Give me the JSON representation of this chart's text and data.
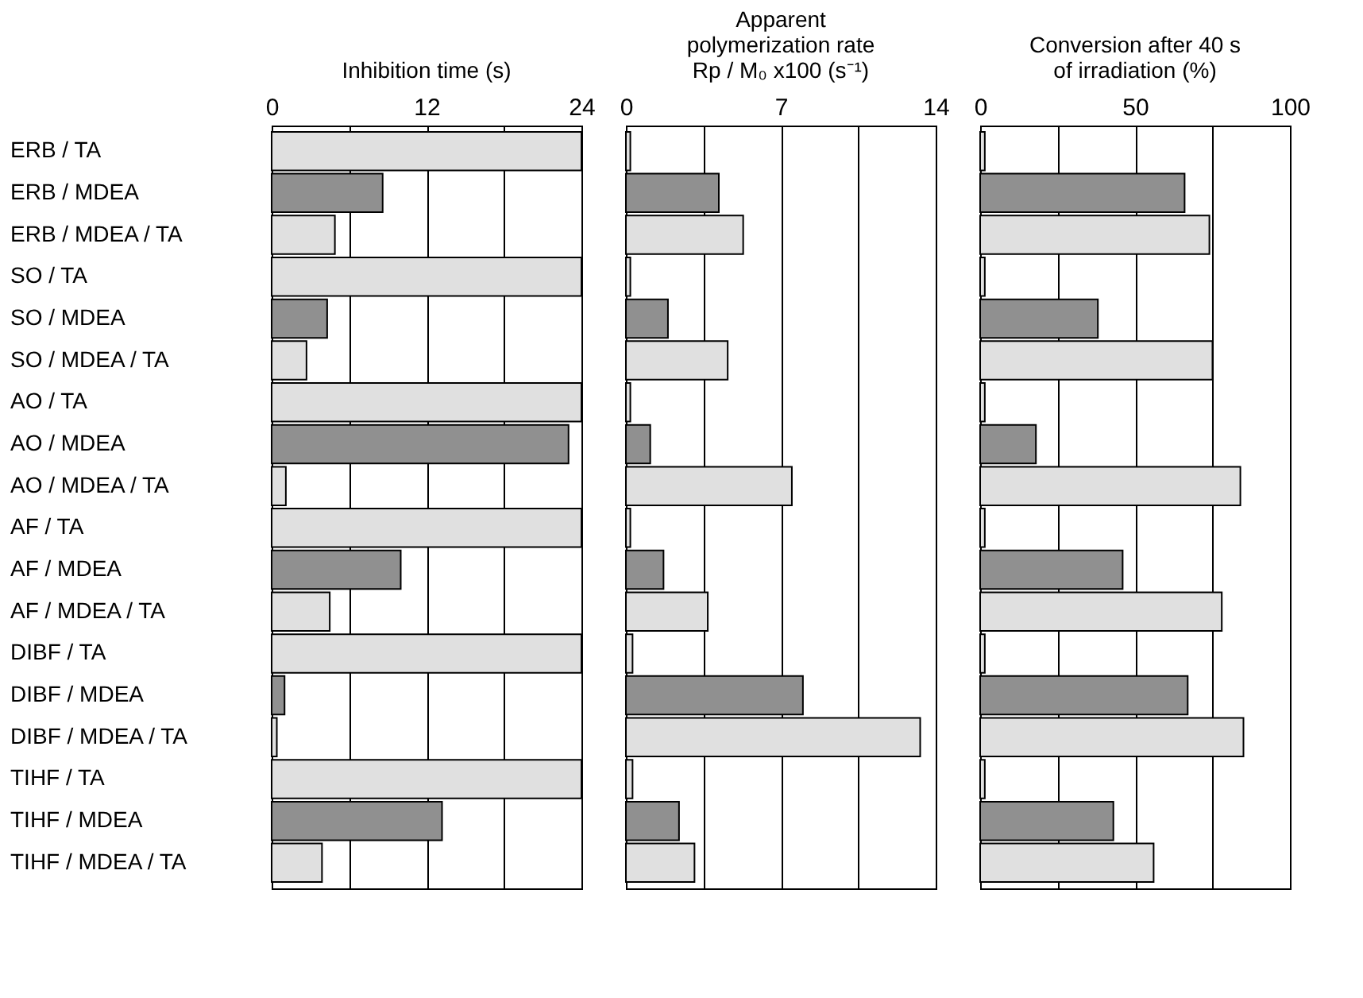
{
  "chart_data": [
    {
      "type": "bar",
      "orientation": "horizontal",
      "title": "Inhibition time (s)",
      "categories": [
        "ERB / TA",
        "ERB / MDEA",
        "ERB / MDEA / TA",
        "SO / TA",
        "SO / MDEA",
        "SO / MDEA / TA",
        "AO / TA",
        "AO / MDEA",
        "AO / MDEA / TA",
        "AF / TA",
        "AF / MDEA",
        "AF / MDEA / TA",
        "DIBF / TA",
        "DIBF / MDEA",
        "DIBF / MDEA / TA",
        "TIHF / TA",
        "TIHF / MDEA",
        "TIHF / MDEA / TA"
      ],
      "values": [
        24,
        8.6,
        4.9,
        24,
        4.3,
        2.7,
        24,
        23.0,
        1.1,
        24,
        10.0,
        4.5,
        24,
        1.0,
        0.4,
        24,
        13.2,
        3.9
      ],
      "colors": [
        "#e0e0e0",
        "#909090",
        "#e0e0e0",
        "#e0e0e0",
        "#909090",
        "#e0e0e0",
        "#e0e0e0",
        "#909090",
        "#e0e0e0",
        "#e0e0e0",
        "#909090",
        "#e0e0e0",
        "#e0e0e0",
        "#909090",
        "#e0e0e0",
        "#e0e0e0",
        "#909090",
        "#e0e0e0"
      ],
      "xlim": [
        0,
        24
      ],
      "xticks": [
        0,
        {
          "value": 6,
          "label": null
        },
        12,
        {
          "value": 18,
          "label": null
        },
        24
      ],
      "grid": "x"
    },
    {
      "type": "bar",
      "orientation": "horizontal",
      "title": "Apparent\npolymerization rate\nRp / M₀ x100 (s⁻¹)",
      "categories": [
        "ERB / TA",
        "ERB / MDEA",
        "ERB / MDEA / TA",
        "SO / TA",
        "SO / MDEA",
        "SO / MDEA / TA",
        "AO / TA",
        "AO / MDEA",
        "AO / MDEA / TA",
        "AF / TA",
        "AF / MDEA",
        "AF / MDEA / TA",
        "DIBF / TA",
        "DIBF / MDEA",
        "DIBF / MDEA / TA",
        "TIHF / TA",
        "TIHF / MDEA",
        "TIHF / MDEA / TA"
      ],
      "values": [
        0.2,
        4.2,
        5.3,
        0.2,
        1.9,
        4.6,
        0.2,
        1.1,
        7.5,
        0.2,
        1.7,
        3.7,
        0.3,
        8.0,
        13.3,
        0.3,
        2.4,
        3.1
      ],
      "colors": [
        "#e0e0e0",
        "#909090",
        "#e0e0e0",
        "#e0e0e0",
        "#909090",
        "#e0e0e0",
        "#e0e0e0",
        "#909090",
        "#e0e0e0",
        "#e0e0e0",
        "#909090",
        "#e0e0e0",
        "#e0e0e0",
        "#909090",
        "#e0e0e0",
        "#e0e0e0",
        "#909090",
        "#e0e0e0"
      ],
      "xlim": [
        0,
        14
      ],
      "xticks": [
        0,
        {
          "value": 3.5,
          "label": null
        },
        7,
        {
          "value": 10.5,
          "label": null
        },
        14
      ],
      "grid": "x",
      "tick_labels": "x"
    },
    {
      "type": "bar",
      "orientation": "horizontal",
      "title": "Conversion after 40 s\nof irradiation (%)",
      "categories": [
        "ERB / TA",
        "ERB / MDEA",
        "ERB / MDEA / TA",
        "SO / TA",
        "SO / MDEA",
        "SO / MDEA / TA",
        "AO / TA",
        "AO / MDEA",
        "AO / MDEA / TA",
        "AF / TA",
        "AF / MDEA",
        "AF / MDEA / TA",
        "DIBF / TA",
        "DIBF / MDEA",
        "DIBF / MDEA / TA",
        "TIHF / TA",
        "TIHF / MDEA",
        "TIHF / MDEA / TA"
      ],
      "values": [
        1.5,
        66,
        74,
        1.5,
        38,
        75,
        1.5,
        18,
        84,
        1.5,
        46,
        78,
        1.5,
        67,
        85,
        1.5,
        43,
        56
      ],
      "colors": [
        "#e0e0e0",
        "#909090",
        "#e0e0e0",
        "#e0e0e0",
        "#909090",
        "#e0e0e0",
        "#e0e0e0",
        "#909090",
        "#e0e0e0",
        "#e0e0e0",
        "#909090",
        "#e0e0e0",
        "#e0e0e0",
        "#909090",
        "#e0e0e0",
        "#e0e0e0",
        "#909090",
        "#e0e0e0"
      ],
      "xlim": [
        0,
        100
      ],
      "xticks": [
        0,
        {
          "value": 25,
          "label": null
        },
        50,
        {
          "value": 75,
          "label": null
        },
        100
      ],
      "grid": "x",
      "tick_labels": "x"
    }
  ]
}
